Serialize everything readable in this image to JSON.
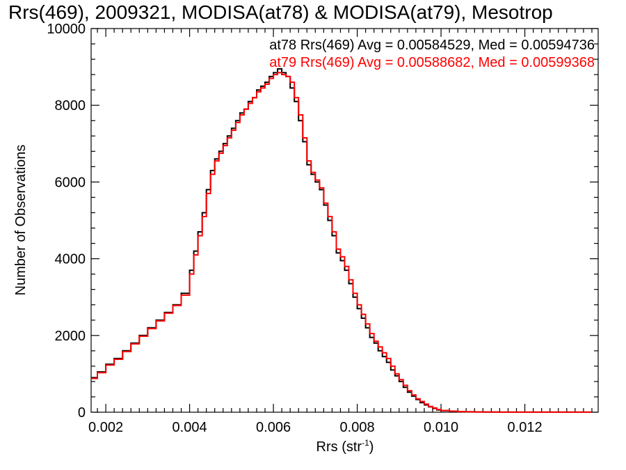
{
  "chart_data": {
    "type": "line",
    "step": true,
    "title": "Rrs(469), 2009321, MODISA(at78) & MODISA(at79), Mesotrop",
    "xlabel_main": "Rrs (str",
    "xlabel_sup": "-1",
    "xlabel_tail": ")",
    "ylabel": "Number of Observations",
    "xlim": [
      0.00165,
      0.01375
    ],
    "ylim": [
      0,
      10000
    ],
    "xticks": [
      0.002,
      0.004,
      0.006,
      0.008,
      0.01,
      0.012
    ],
    "xtick_labels": [
      "0.002",
      "0.004",
      "0.006",
      "0.008",
      "0.010",
      "0.012"
    ],
    "yticks": [
      0,
      2000,
      4000,
      6000,
      8000,
      10000
    ],
    "ytick_labels": [
      "0",
      "2000",
      "4000",
      "6000",
      "8000",
      "10000"
    ],
    "grid": false,
    "legend": [
      {
        "text": "at78 Rrs(469) Avg = 0.00584529, Med = 0.00594736",
        "color": "#000000"
      },
      {
        "text": "at79 Rrs(469) Avg = 0.00588682, Med = 0.00599368",
        "color": "#ff0000"
      }
    ],
    "x": [
      0.00165,
      0.0018,
      0.002,
      0.0022,
      0.0024,
      0.0026,
      0.0028,
      0.003,
      0.0032,
      0.0034,
      0.0036,
      0.0038,
      0.004,
      0.0041,
      0.0042,
      0.0043,
      0.0044,
      0.0045,
      0.0046,
      0.0047,
      0.0048,
      0.0049,
      0.005,
      0.0051,
      0.0052,
      0.0053,
      0.0054,
      0.0055,
      0.0056,
      0.0057,
      0.0058,
      0.0059,
      0.006,
      0.0061,
      0.0062,
      0.0063,
      0.0064,
      0.0065,
      0.0066,
      0.0067,
      0.0068,
      0.0069,
      0.007,
      0.0071,
      0.0072,
      0.0073,
      0.0074,
      0.0075,
      0.0076,
      0.0077,
      0.0078,
      0.0079,
      0.008,
      0.0081,
      0.0082,
      0.0083,
      0.0084,
      0.0085,
      0.0086,
      0.0087,
      0.0088,
      0.0089,
      0.009,
      0.0091,
      0.0092,
      0.0093,
      0.0094,
      0.0095,
      0.0096,
      0.0097,
      0.0098,
      0.0099,
      0.01,
      0.0102,
      0.0104,
      0.0106,
      0.0108,
      0.011,
      0.0112,
      0.0114,
      0.0116,
      0.0118,
      0.012,
      0.0122,
      0.0124,
      0.0126,
      0.0128,
      0.013,
      0.0132,
      0.0134,
      0.0136
    ],
    "series": [
      {
        "name": "at78",
        "color": "#000000",
        "values": [
          900,
          1050,
          1250,
          1400,
          1600,
          1800,
          2000,
          2200,
          2400,
          2600,
          2800,
          3100,
          3700,
          4200,
          4700,
          5200,
          5800,
          6300,
          6600,
          6800,
          7000,
          7200,
          7400,
          7600,
          7800,
          7900,
          8100,
          8200,
          8400,
          8500,
          8600,
          8750,
          8850,
          8950,
          8850,
          8750,
          8450,
          8100,
          7600,
          7050,
          6450,
          6200,
          6000,
          5800,
          5400,
          5000,
          4600,
          4150,
          3950,
          3700,
          3350,
          3000,
          2700,
          2450,
          2200,
          1950,
          1800,
          1600,
          1450,
          1300,
          1100,
          950,
          800,
          650,
          520,
          420,
          330,
          250,
          190,
          140,
          100,
          60,
          40,
          25,
          15,
          10,
          7,
          5,
          3,
          2,
          2,
          1,
          1,
          1,
          1,
          1,
          1,
          1,
          1,
          1,
          1
        ]
      },
      {
        "name": "at79",
        "color": "#ff0000",
        "values": [
          880,
          1030,
          1230,
          1380,
          1580,
          1780,
          1980,
          2180,
          2380,
          2580,
          2780,
          3050,
          3600,
          4100,
          4600,
          5100,
          5700,
          6200,
          6550,
          6750,
          6950,
          7150,
          7350,
          7550,
          7750,
          7900,
          8050,
          8200,
          8350,
          8450,
          8550,
          8700,
          8800,
          8850,
          8800,
          8750,
          8600,
          8200,
          7750,
          7150,
          6550,
          6250,
          6050,
          5850,
          5450,
          5100,
          4700,
          4250,
          4050,
          3800,
          3450,
          3100,
          2800,
          2550,
          2300,
          2050,
          1850,
          1700,
          1550,
          1400,
          1200,
          1000,
          850,
          700,
          560,
          450,
          350,
          280,
          210,
          150,
          110,
          70,
          45,
          28,
          17,
          11,
          8,
          5,
          3,
          2,
          2,
          1,
          1,
          1,
          1,
          1,
          1,
          1,
          1,
          1,
          1
        ]
      }
    ]
  }
}
